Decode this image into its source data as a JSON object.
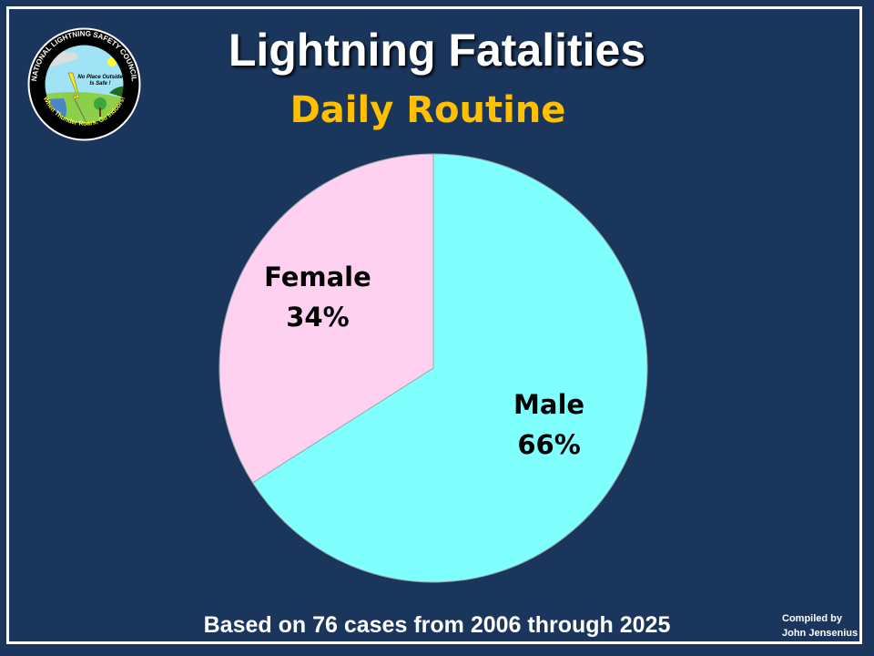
{
  "logo": {
    "text_top": "NATIONAL LIGHTNING SAFETY COUNCIL",
    "text_inner": "No Place Outside Is Safe !",
    "text_bottom": "When Thunder Roars, Go Indoors!"
  },
  "footer": "Based on 76 cases from 2006 through 2025",
  "credit": {
    "line1": "Compiled by",
    "line2": "John Jensenius"
  },
  "chart_data": {
    "type": "pie",
    "title": "Lightning Fatalities",
    "subtitle": "Daily Routine",
    "slices": [
      {
        "name": "Male",
        "value": 66,
        "label": "66%",
        "color": "#80ffff"
      },
      {
        "name": "Female",
        "value": 34,
        "label": "34%",
        "color": "#ffd1f0"
      }
    ]
  }
}
